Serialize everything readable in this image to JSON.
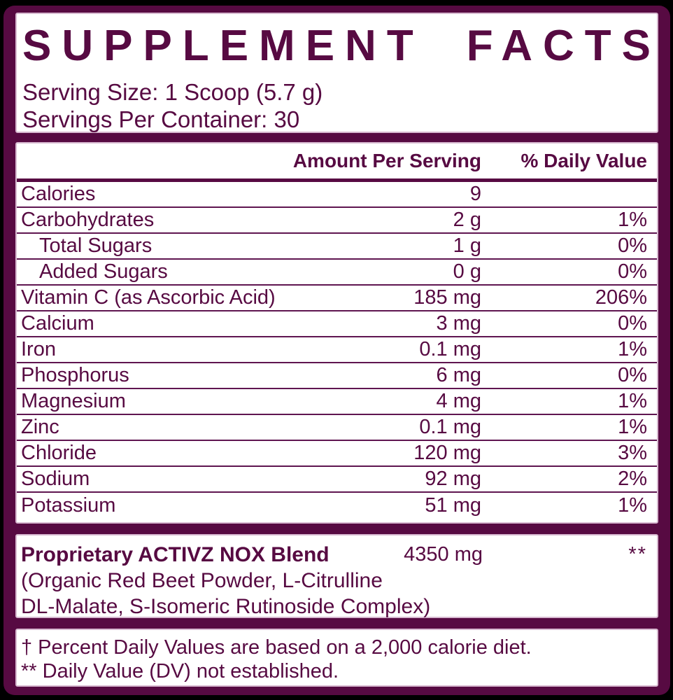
{
  "colors": {
    "accent_maroon": "#570a42",
    "panel_outline": "#d7b9d0",
    "background": "#000000",
    "panel_fill": "#ffffff"
  },
  "header": {
    "title": "SUPPLEMENT FACTS",
    "title_words": [
      "SUPPLEMENT",
      "FACTS"
    ],
    "serving_size": "Serving Size: 1 Scoop (5.7 g)",
    "servings_per_container": "Servings Per Container: 30"
  },
  "table": {
    "columns": {
      "amount": "Amount Per Serving",
      "dv": "% Daily Value"
    },
    "rows": [
      {
        "name": "Calories",
        "amount": "9",
        "dv": ""
      },
      {
        "name": "Carbohydrates",
        "amount": "2 g",
        "dv": "1%"
      },
      {
        "name": "Total Sugars",
        "amount": "1 g",
        "dv": "0%",
        "indent": true
      },
      {
        "name": "Added Sugars",
        "amount": "0 g",
        "dv": "0%",
        "indent": true
      },
      {
        "name": "Vitamin C (as Ascorbic Acid)",
        "amount": "185 mg",
        "dv": "206%"
      },
      {
        "name": "Calcium",
        "amount": "3 mg",
        "dv": "0%"
      },
      {
        "name": "Iron",
        "amount": "0.1 mg",
        "dv": "1%"
      },
      {
        "name": "Phosphorus",
        "amount": "6 mg",
        "dv": "0%"
      },
      {
        "name": "Magnesium",
        "amount": "4 mg",
        "dv": "1%"
      },
      {
        "name": "Zinc",
        "amount": "0.1 mg",
        "dv": "1%"
      },
      {
        "name": "Chloride",
        "amount": "120 mg",
        "dv": "3%"
      },
      {
        "name": "Sodium",
        "amount": "92 mg",
        "dv": "2%"
      },
      {
        "name": "Potassium",
        "amount": "51 mg",
        "dv": "1%"
      }
    ]
  },
  "blend": {
    "name": "Proprietary ACTIVZ NOX Blend",
    "amount": "4350 mg",
    "dv": "**",
    "description_lines": [
      "(Organic Red Beet Powder, L-Citrulline",
      "DL-Malate, S-Isomeric Rutinoside Complex)"
    ]
  },
  "footnotes": {
    "daily_value": "† Percent Daily Values are based on a 2,000 calorie diet.",
    "not_established": "** Daily Value (DV) not established."
  }
}
